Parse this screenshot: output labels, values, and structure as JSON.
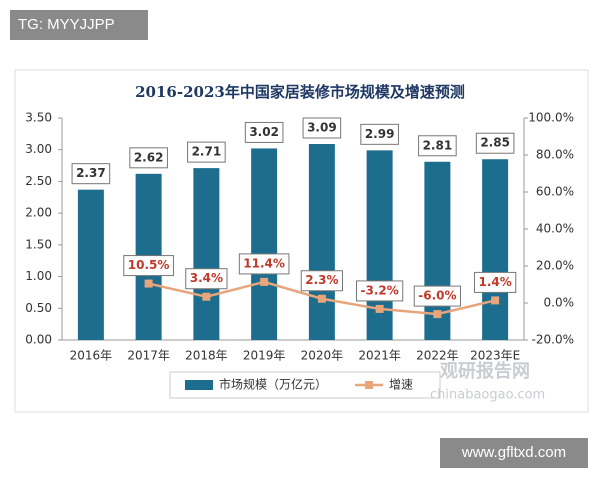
{
  "chart_data": {
    "type": "bar-line",
    "title": "2016-2023年中国家居装修市场规模及增速预测",
    "categories": [
      "2016年",
      "2017年",
      "2018年",
      "2019年",
      "2020年",
      "2021年",
      "2022年",
      "2023年E"
    ],
    "series": [
      {
        "name": "市场规模（万亿元）",
        "color": "#1d6e8e",
        "type": "bar",
        "values": [
          2.37,
          2.62,
          2.71,
          3.02,
          3.09,
          2.99,
          2.81,
          2.85
        ]
      },
      {
        "name": "增速",
        "color": "#e8a47a",
        "type": "line",
        "axis": "y2",
        "values": [
          null,
          10.5,
          3.4,
          11.4,
          2.3,
          -3.2,
          -6.0,
          1.4
        ],
        "value_labels": [
          null,
          "10.5%",
          "3.4%",
          "11.4%",
          "2.3%",
          "-3.2%",
          "-6.0%",
          "1.4%"
        ]
      }
    ],
    "ylim": [
      0,
      3.5
    ],
    "yticks": [
      {
        "value": 0,
        "label": "0.00"
      },
      {
        "value": 0.5,
        "label": "0.50"
      },
      {
        "value": 1,
        "label": "1.00"
      },
      {
        "value": 1.5,
        "label": "1.50"
      },
      {
        "value": 2,
        "label": "2.00"
      },
      {
        "value": 2.5,
        "label": "2.50"
      },
      {
        "value": 3,
        "label": "3.00"
      },
      {
        "value": 3.5,
        "label": "3.50"
      }
    ],
    "y2lim": [
      -20,
      100
    ],
    "y2ticks": [
      {
        "value": -20,
        "label": "-20.0%"
      },
      {
        "value": 0,
        "label": "0.0%"
      },
      {
        "value": 20,
        "label": "20.0%"
      },
      {
        "value": 40,
        "label": "40.0%"
      },
      {
        "value": 60,
        "label": "60.0%"
      },
      {
        "value": 80,
        "label": "80.0%"
      },
      {
        "value": 100,
        "label": "100.0%"
      }
    ],
    "legend": "bottom"
  },
  "watermarks": {
    "top_left": "TG: MYYJJPP",
    "bottom_right": "www.gfltxd.com",
    "brand": "观研报告网",
    "brand_url": "chinabaogao.com"
  }
}
